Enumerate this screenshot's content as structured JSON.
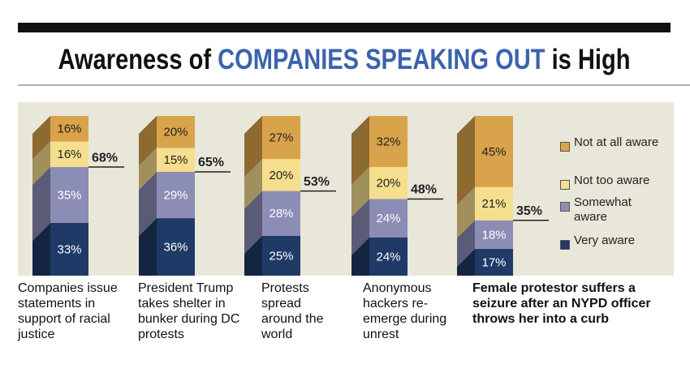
{
  "chart_data": {
    "type": "stacked_bar",
    "title_parts": [
      "Awareness of ",
      "COMPANIES SPEAKING OUT",
      " is High"
    ],
    "title_colors": [
      "#111111",
      "#3b63ad",
      "#111111"
    ],
    "categories": [
      "Companies issue statements in support of racial justice",
      "President Trump takes shelter in bunker during DC protests",
      "Protests spread around the world",
      "Anonymous hackers re-emerge during unrest",
      "Female protestor suffers a seizure after an NYPD officer throws her into a curb"
    ],
    "series": [
      {
        "name": "Very aware",
        "color": "#1f3a66",
        "values": [
          33,
          36,
          25,
          24,
          17
        ],
        "value_labels": [
          "33%",
          "36%",
          "25%",
          "24%",
          "17%"
        ]
      },
      {
        "name": "Somewhat aware",
        "color": "#8b8db5",
        "values": [
          35,
          29,
          28,
          24,
          18
        ],
        "value_labels": [
          "35%",
          "29%",
          "28%",
          "24%",
          "18%"
        ]
      },
      {
        "name": "Not too aware",
        "color": "#f6de8f",
        "values": [
          16,
          15,
          20,
          20,
          21
        ],
        "value_labels": [
          "16%",
          "15%",
          "20%",
          "20%",
          "21%"
        ]
      },
      {
        "name": "Not at all aware",
        "color": "#d9a34b",
        "values": [
          16,
          20,
          27,
          32,
          45
        ],
        "value_labels": [
          "16%",
          "20%",
          "27%",
          "32%",
          "45%"
        ]
      }
    ],
    "totals": {
      "values": [
        68,
        65,
        53,
        48,
        35
      ],
      "value_labels": [
        "68%",
        "65%",
        "53%",
        "48%",
        "35%"
      ]
    }
  }
}
